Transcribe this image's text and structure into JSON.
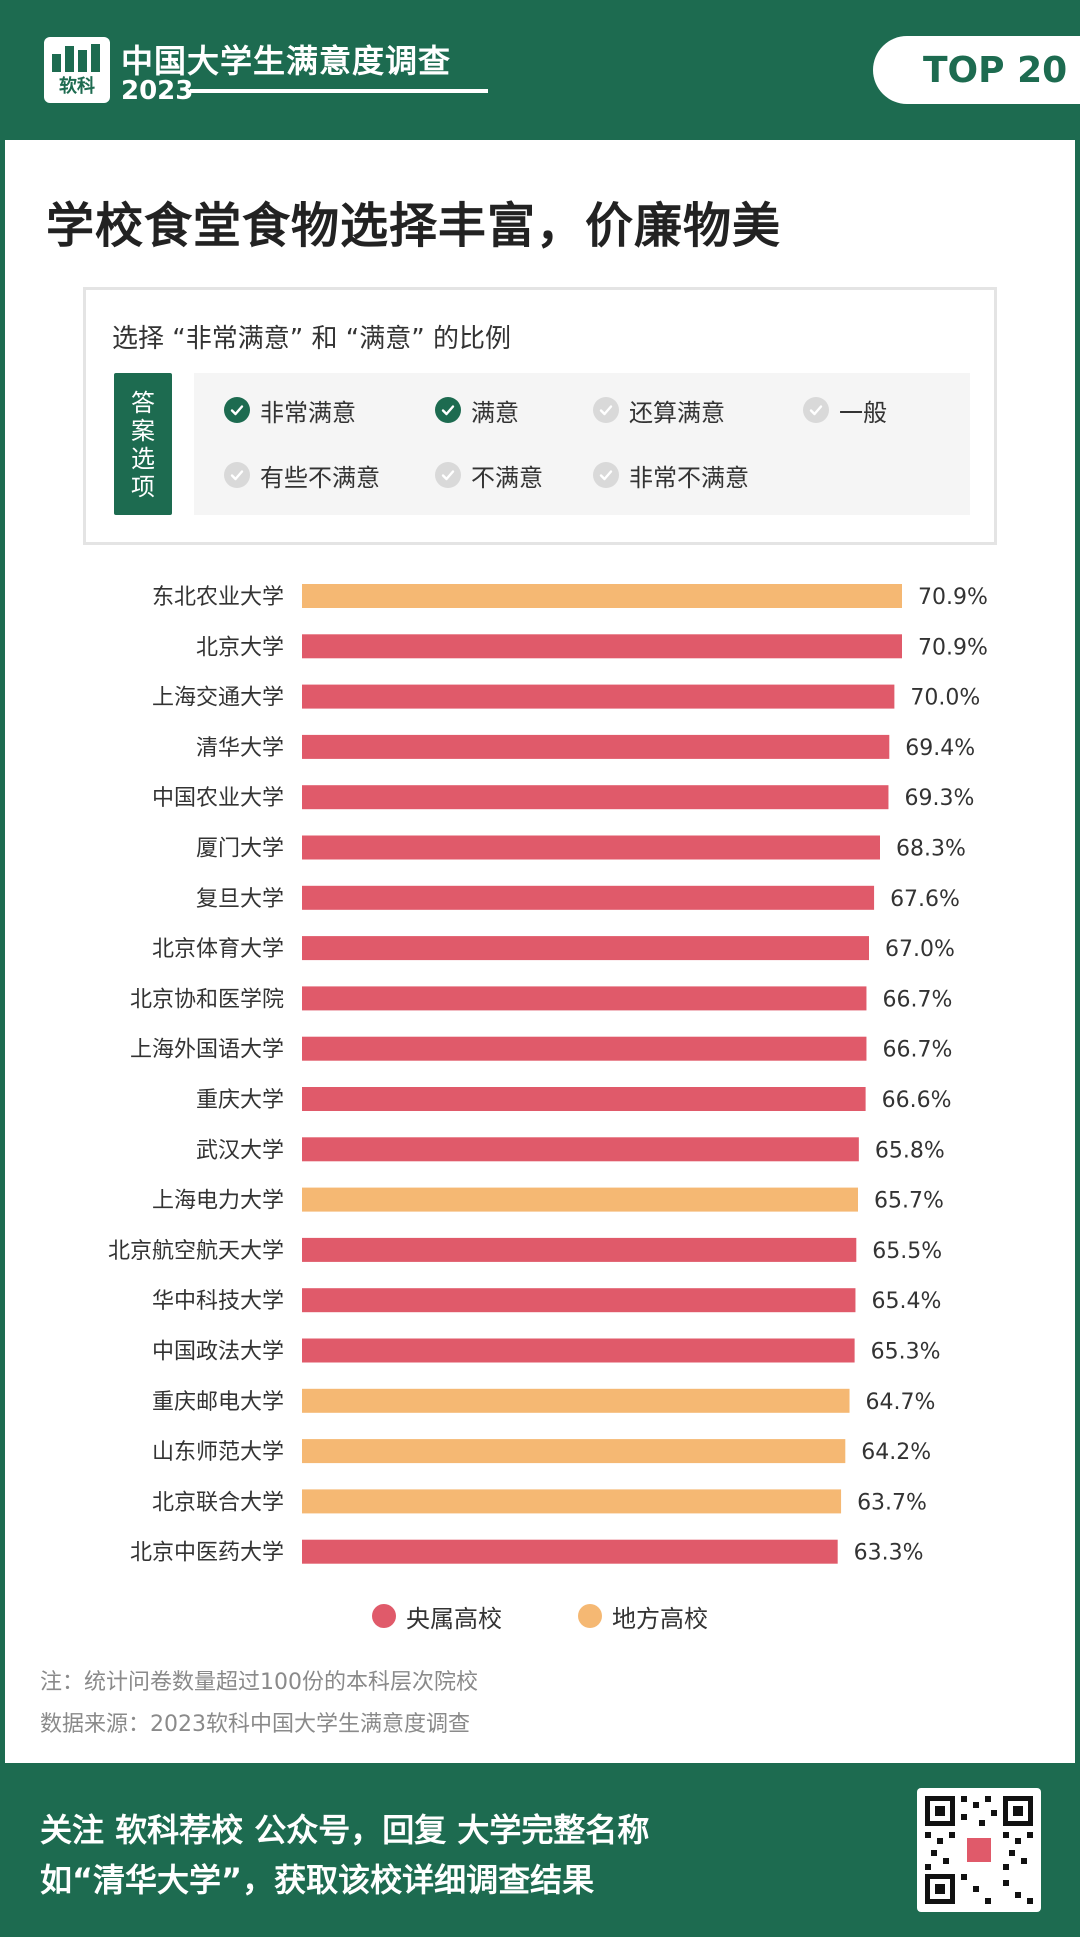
{
  "header": {
    "logo_text": "软科",
    "survey_title": "中国大学生满意度调查",
    "survey_year": "2023",
    "badge": "TOP 20"
  },
  "main_title": "学校食堂食物选择丰富，价廉物美",
  "panel": {
    "title": "选择 “非常满意” 和 “满意” 的比例",
    "answer_tag": [
      "答",
      "案",
      "选",
      "项"
    ],
    "options": [
      {
        "label": "非常满意",
        "checked": true
      },
      {
        "label": "满意",
        "checked": true
      },
      {
        "label": "还算满意",
        "checked": false
      },
      {
        "label": "一般",
        "checked": false
      },
      {
        "label": "有些不满意",
        "checked": false
      },
      {
        "label": "不满意",
        "checked": false
      },
      {
        "label": "非常不满意",
        "checked": false
      }
    ]
  },
  "chart_data": {
    "type": "bar",
    "orientation": "horizontal",
    "value_suffix": "%",
    "xlim": [
      0,
      70.9
    ],
    "categories": [
      "东北农业大学",
      "北京大学",
      "上海交通大学",
      "清华大学",
      "中国农业大学",
      "厦门大学",
      "复旦大学",
      "北京体育大学",
      "北京协和医学院",
      "上海外国语大学",
      "重庆大学",
      "武汉大学",
      "上海电力大学",
      "北京航空航天大学",
      "华中科技大学",
      "中国政法大学",
      "重庆邮电大学",
      "山东师范大学",
      "北京联合大学",
      "北京中医药大学"
    ],
    "values": [
      70.9,
      70.9,
      70.0,
      69.4,
      69.3,
      68.3,
      67.6,
      67.0,
      66.7,
      66.7,
      66.6,
      65.8,
      65.7,
      65.5,
      65.4,
      65.3,
      64.7,
      64.2,
      63.7,
      63.3
    ],
    "group": [
      "地方高校",
      "央属高校",
      "央属高校",
      "央属高校",
      "央属高校",
      "央属高校",
      "央属高校",
      "央属高校",
      "央属高校",
      "央属高校",
      "央属高校",
      "央属高校",
      "地方高校",
      "央属高校",
      "央属高校",
      "央属高校",
      "地方高校",
      "地方高校",
      "地方高校",
      "央属高校"
    ],
    "legend": [
      {
        "name": "央属高校",
        "color": "#e05a6a"
      },
      {
        "name": "地方高校",
        "color": "#f5b873"
      }
    ],
    "legend_position": "bottom",
    "grid": false
  },
  "colors": {
    "brand_green": "#1d6b50",
    "check_on": "#1d6b50",
    "check_off": "#d9d9d9"
  },
  "notes": {
    "note": "注：统计问卷数量超过100份的本科层次院校",
    "source": "数据来源：2023软科中国大学生满意度调查"
  },
  "footer": {
    "line1": "关注 软科荐校 公众号，回复 大学完整名称",
    "line2": "如“清华大学”，获取该校详细调查结果"
  }
}
